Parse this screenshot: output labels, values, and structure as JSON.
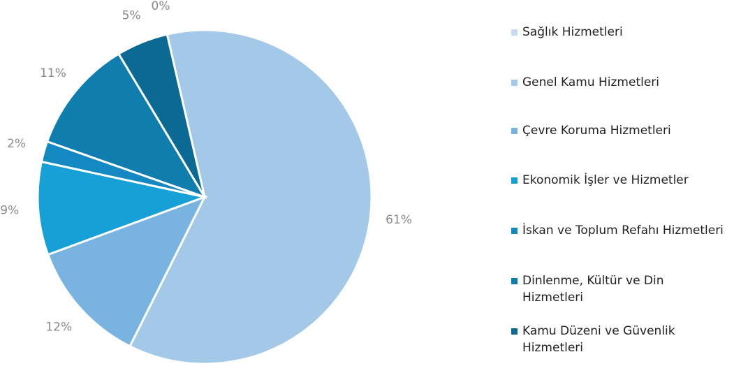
{
  "chart_data": {
    "type": "pie",
    "categories": [
      "Sağlık Hizmetleri",
      "Genel Kamu Hizmetleri",
      "Çevre Koruma Hizmetleri",
      "Ekonomik İşler ve Hizmetler",
      "İskan ve Toplum Refahı Hizmetleri",
      "Dinlenme, Kültür ve Din Hizmetleri",
      "Kamu Düzeni ve Güvenlik Hizmetleri"
    ],
    "values": [
      0,
      61,
      12,
      9,
      2,
      11,
      5
    ],
    "value_labels": [
      "0%",
      "61%",
      "12%",
      "9%",
      "2%",
      "11%",
      "5%"
    ],
    "colors": [
      "#c6ddf1",
      "#a3c8e8",
      "#78b4df",
      "#179fd8",
      "#1489c1",
      "#0f7eae",
      "#0b6a94"
    ],
    "legend": "right"
  }
}
